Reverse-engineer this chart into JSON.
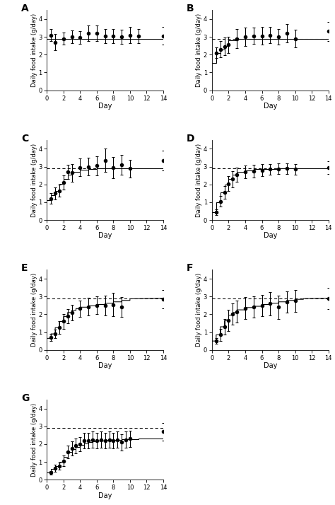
{
  "panels": {
    "A": {
      "label": "A",
      "has_step": false,
      "has_dashed": false,
      "solid_y": 2.9,
      "data_x": [
        0.5,
        1,
        2,
        3,
        4,
        5,
        6,
        7,
        8,
        9,
        10,
        11,
        14
      ],
      "data_y": [
        3.1,
        2.7,
        2.9,
        3.0,
        2.95,
        3.2,
        3.2,
        3.05,
        3.05,
        3.0,
        3.1,
        3.05,
        3.05
      ],
      "data_yerr_low": [
        0.35,
        0.45,
        0.35,
        0.35,
        0.35,
        0.45,
        0.45,
        0.4,
        0.4,
        0.4,
        0.45,
        0.4,
        0.5
      ],
      "data_yerr_high": [
        0.35,
        0.45,
        0.35,
        0.35,
        0.35,
        0.45,
        0.45,
        0.4,
        0.4,
        0.4,
        0.45,
        0.4,
        0.5
      ],
      "ylim": [
        0,
        4.5
      ],
      "yticks": [
        0,
        1,
        2,
        3,
        4
      ]
    },
    "B": {
      "label": "B",
      "has_step": true,
      "has_dashed": true,
      "dashed_y": 2.9,
      "step_x": [
        0,
        0.5,
        0.5,
        1.0,
        1.0,
        1.5,
        1.5,
        2.0,
        2.0,
        3.0,
        3.0,
        14
      ],
      "step_y": [
        1.55,
        1.55,
        2.1,
        2.1,
        2.3,
        2.3,
        2.5,
        2.5,
        2.8,
        2.8,
        2.9,
        2.9
      ],
      "data_x": [
        0.5,
        1,
        1.5,
        2,
        3,
        4,
        5,
        6,
        7,
        8,
        9,
        10,
        14
      ],
      "data_y": [
        2.1,
        2.3,
        2.45,
        2.55,
        2.9,
        3.0,
        3.05,
        3.05,
        3.1,
        3.0,
        3.2,
        2.9,
        3.3
      ],
      "data_yerr_low": [
        0.3,
        0.45,
        0.5,
        0.45,
        0.55,
        0.5,
        0.45,
        0.5,
        0.45,
        0.45,
        0.5,
        0.5,
        0.55
      ],
      "data_yerr_high": [
        0.3,
        0.45,
        0.5,
        0.45,
        0.55,
        0.5,
        0.45,
        0.5,
        0.45,
        0.45,
        0.5,
        0.5,
        0.55
      ],
      "ylim": [
        0,
        4.5
      ],
      "yticks": [
        0,
        1,
        2,
        3,
        4
      ]
    },
    "C": {
      "label": "C",
      "has_step": true,
      "has_dashed": true,
      "dashed_y": 2.9,
      "step_x": [
        0,
        0.5,
        0.5,
        1.0,
        1.0,
        1.5,
        1.5,
        2.0,
        2.0,
        2.5,
        2.5,
        3.0,
        3.0,
        4.0,
        4.0,
        5.0,
        5.0,
        6.0,
        6.0,
        14
      ],
      "step_y": [
        1.1,
        1.1,
        1.4,
        1.4,
        1.65,
        1.65,
        2.05,
        2.05,
        2.3,
        2.3,
        2.55,
        2.55,
        2.72,
        2.72,
        2.82,
        2.82,
        2.88,
        2.88,
        2.9,
        2.9
      ],
      "data_x": [
        0.5,
        1,
        1.5,
        2,
        2.5,
        3,
        4,
        5,
        6,
        7,
        8,
        9,
        10,
        14
      ],
      "data_y": [
        1.2,
        1.5,
        1.65,
        2.1,
        2.7,
        2.65,
        2.95,
        3.0,
        3.05,
        3.35,
        2.95,
        3.1,
        2.9,
        3.35
      ],
      "data_yerr_low": [
        0.3,
        0.35,
        0.35,
        0.4,
        0.4,
        0.5,
        0.5,
        0.5,
        0.55,
        0.65,
        0.6,
        0.55,
        0.5,
        0.55
      ],
      "data_yerr_high": [
        0.3,
        0.35,
        0.35,
        0.4,
        0.4,
        0.5,
        0.5,
        0.5,
        0.55,
        0.65,
        0.6,
        0.55,
        0.5,
        0.55
      ],
      "ylim": [
        0,
        4.5
      ],
      "yticks": [
        0,
        1,
        2,
        3,
        4
      ]
    },
    "D": {
      "label": "D",
      "has_step": true,
      "has_dashed": true,
      "dashed_y": 2.9,
      "step_x": [
        0,
        0.5,
        0.5,
        1.0,
        1.0,
        1.5,
        1.5,
        2.0,
        2.0,
        2.5,
        2.5,
        3.0,
        3.0,
        4.0,
        4.0,
        5.0,
        5.0,
        6.0,
        6.0,
        8.0,
        8.0,
        14
      ],
      "step_y": [
        0.45,
        0.45,
        1.0,
        1.0,
        1.55,
        1.55,
        2.0,
        2.0,
        2.3,
        2.3,
        2.55,
        2.55,
        2.72,
        2.72,
        2.8,
        2.8,
        2.85,
        2.85,
        2.88,
        2.88,
        2.9,
        2.9
      ],
      "data_x": [
        0.5,
        1,
        1.5,
        2,
        2.5,
        3,
        4,
        5,
        6,
        7,
        8,
        9,
        10,
        14
      ],
      "data_y": [
        0.45,
        1.05,
        1.55,
        2.05,
        2.3,
        2.55,
        2.7,
        2.75,
        2.8,
        2.85,
        2.88,
        2.9,
        2.85,
        2.95
      ],
      "data_yerr_low": [
        0.15,
        0.3,
        0.35,
        0.4,
        0.45,
        0.4,
        0.35,
        0.35,
        0.35,
        0.3,
        0.3,
        0.3,
        0.3,
        0.35
      ],
      "data_yerr_high": [
        0.15,
        0.3,
        0.35,
        0.4,
        0.45,
        0.4,
        0.35,
        0.35,
        0.35,
        0.3,
        0.3,
        0.3,
        0.3,
        0.35
      ],
      "ylim": [
        0,
        4.5
      ],
      "yticks": [
        0,
        1,
        2,
        3,
        4
      ]
    },
    "E": {
      "label": "E",
      "has_step": true,
      "has_dashed": true,
      "dashed_y": 2.9,
      "step_x": [
        0,
        0.5,
        0.5,
        1.0,
        1.0,
        1.5,
        1.5,
        2.0,
        2.0,
        2.5,
        2.5,
        3.0,
        3.0,
        3.5,
        3.5,
        4.0,
        4.0,
        5.0,
        5.0,
        6.0,
        6.0,
        7.0,
        7.0,
        8.0,
        8.0,
        9.0,
        9.0,
        10.0,
        10.0,
        14
      ],
      "step_y": [
        0.65,
        0.65,
        0.9,
        0.9,
        1.25,
        1.25,
        1.6,
        1.6,
        1.88,
        1.88,
        2.1,
        2.1,
        2.22,
        2.22,
        2.32,
        2.32,
        2.4,
        2.4,
        2.48,
        2.48,
        2.55,
        2.55,
        2.62,
        2.62,
        2.7,
        2.7,
        2.78,
        2.78,
        2.87,
        2.9
      ],
      "data_x": [
        0.5,
        1,
        1.5,
        2,
        2.5,
        3,
        4,
        5,
        6,
        7,
        8,
        9,
        14
      ],
      "data_y": [
        0.7,
        0.9,
        1.25,
        1.6,
        1.9,
        2.1,
        2.32,
        2.42,
        2.5,
        2.5,
        2.55,
        2.42,
        2.85
      ],
      "data_yerr_low": [
        0.2,
        0.25,
        0.35,
        0.4,
        0.4,
        0.45,
        0.45,
        0.5,
        0.5,
        0.55,
        0.65,
        0.55,
        0.5
      ],
      "data_yerr_high": [
        0.2,
        0.25,
        0.35,
        0.4,
        0.4,
        0.45,
        0.45,
        0.5,
        0.5,
        0.55,
        0.65,
        0.55,
        0.5
      ],
      "ylim": [
        0,
        4.5
      ],
      "yticks": [
        0,
        1,
        2,
        3,
        4
      ]
    },
    "F": {
      "label": "F",
      "has_step": true,
      "has_dashed": true,
      "dashed_y": 2.9,
      "step_x": [
        0,
        0.5,
        0.5,
        1.0,
        1.0,
        1.5,
        1.5,
        2.0,
        2.0,
        2.5,
        2.5,
        3.0,
        3.0,
        4.0,
        4.0,
        5.0,
        5.0,
        6.0,
        6.0,
        7.0,
        7.0,
        8.0,
        8.0,
        9.0,
        9.0,
        10.0,
        10.0,
        11.0,
        11.0,
        14
      ],
      "step_y": [
        0.5,
        0.5,
        0.85,
        0.85,
        1.3,
        1.3,
        1.65,
        1.65,
        1.95,
        1.95,
        2.1,
        2.1,
        2.25,
        2.25,
        2.38,
        2.38,
        2.45,
        2.45,
        2.55,
        2.55,
        2.62,
        2.62,
        2.7,
        2.7,
        2.78,
        2.78,
        2.84,
        2.84,
        2.88,
        2.9
      ],
      "data_x": [
        0.5,
        1,
        1.5,
        2,
        2.5,
        3,
        4,
        5,
        6,
        7,
        8,
        9,
        10,
        14
      ],
      "data_y": [
        0.5,
        0.85,
        1.3,
        1.65,
        2.0,
        2.15,
        2.35,
        2.42,
        2.5,
        2.6,
        2.4,
        2.7,
        2.75,
        2.9
      ],
      "data_yerr_low": [
        0.15,
        0.35,
        0.45,
        0.6,
        0.6,
        0.6,
        0.6,
        0.6,
        0.6,
        0.65,
        0.65,
        0.6,
        0.6,
        0.6
      ],
      "data_yerr_high": [
        0.15,
        0.35,
        0.45,
        0.6,
        0.6,
        0.6,
        0.6,
        0.6,
        0.6,
        0.65,
        0.65,
        0.6,
        0.6,
        0.6
      ],
      "ylim": [
        0,
        4.5
      ],
      "yticks": [
        0,
        1,
        2,
        3,
        4
      ]
    },
    "G": {
      "label": "G",
      "has_step": true,
      "has_dashed": true,
      "dashed_y": 2.9,
      "step_x": [
        0,
        0.5,
        0.5,
        1.0,
        1.0,
        1.5,
        1.5,
        2.0,
        2.0,
        2.5,
        2.5,
        3.0,
        3.0,
        3.5,
        3.5,
        4.0,
        4.0,
        4.5,
        4.5,
        5.0,
        5.0,
        5.5,
        5.5,
        6.0,
        6.0,
        6.5,
        6.5,
        7.0,
        7.0,
        7.5,
        7.5,
        8.0,
        8.0,
        8.5,
        8.5,
        9.0,
        9.0,
        9.5,
        9.5,
        10.0,
        10.0,
        10.5,
        10.5,
        11.0,
        11.0,
        14
      ],
      "step_y": [
        0.4,
        0.4,
        0.6,
        0.6,
        0.75,
        0.75,
        1.0,
        1.0,
        1.3,
        1.3,
        1.55,
        1.55,
        1.7,
        1.7,
        1.85,
        1.85,
        1.95,
        1.95,
        2.05,
        2.05,
        2.1,
        2.1,
        2.15,
        2.15,
        2.18,
        2.18,
        2.2,
        2.2,
        2.22,
        2.22,
        2.23,
        2.23,
        2.24,
        2.24,
        2.25,
        2.25,
        2.26,
        2.26,
        2.27,
        2.27,
        2.28,
        2.28,
        2.29,
        2.29,
        2.3,
        2.3
      ],
      "data_x": [
        0.5,
        1,
        1.5,
        2,
        2.5,
        3,
        3.5,
        4,
        4.5,
        5,
        5.5,
        6,
        6.5,
        7,
        7.5,
        8,
        8.5,
        9,
        9.5,
        10,
        14
      ],
      "data_y": [
        0.4,
        0.65,
        0.75,
        1.05,
        1.55,
        1.75,
        1.9,
        2.0,
        2.2,
        2.2,
        2.25,
        2.2,
        2.25,
        2.2,
        2.25,
        2.2,
        2.25,
        2.1,
        2.25,
        2.3,
        2.7
      ],
      "data_yerr_low": [
        0.1,
        0.2,
        0.2,
        0.3,
        0.35,
        0.4,
        0.4,
        0.4,
        0.45,
        0.45,
        0.45,
        0.45,
        0.45,
        0.45,
        0.45,
        0.45,
        0.45,
        0.45,
        0.45,
        0.45,
        0.5
      ],
      "data_yerr_high": [
        0.1,
        0.2,
        0.2,
        0.3,
        0.35,
        0.4,
        0.4,
        0.4,
        0.45,
        0.45,
        0.45,
        0.45,
        0.45,
        0.45,
        0.45,
        0.45,
        0.45,
        0.45,
        0.45,
        0.45,
        0.5
      ],
      "ylim": [
        0,
        4.5
      ],
      "yticks": [
        0,
        1,
        2,
        3,
        4
      ]
    }
  },
  "xlabel": "Day",
  "ylabel": "Daily food intake (g/day)",
  "xticks": [
    0,
    2,
    4,
    6,
    8,
    10,
    12,
    14
  ],
  "xlim": [
    0,
    14
  ],
  "marker_color": "black",
  "line_color": "black",
  "marker_size": 3,
  "line_width": 0.75,
  "capsize": 1.5
}
